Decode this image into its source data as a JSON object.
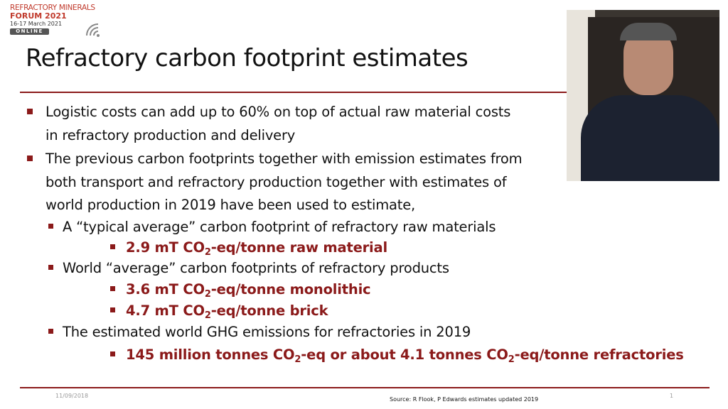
{
  "logo": {
    "line1": "REFRACTORY MINERALS",
    "line2": "FORUM 2021",
    "date": "16-17 March 2021",
    "badge": "ONLINE"
  },
  "slide": {
    "title": "Refractory carbon footprint estimates",
    "bullets": [
      {
        "level": 1,
        "lines": [
          "Logistic costs can add up to 60% on top of actual raw material costs",
          "in refractory production and delivery"
        ]
      },
      {
        "level": 1,
        "lines": [
          "The previous carbon footprints together with emission estimates from",
          "both transport and refractory production together with estimates of",
          "world production in 2019 have been used to estimate,"
        ]
      },
      {
        "level": 2,
        "lines": [
          "A “typical average” carbon footprint of refractory raw materials"
        ]
      },
      {
        "level": 3,
        "parts": [
          {
            "text": "2.9 mT CO"
          },
          {
            "sub": "2"
          },
          {
            "text": "-eq/tonne raw material"
          }
        ]
      },
      {
        "level": 2,
        "lines": [
          "World “average” carbon footprints of refractory products"
        ]
      },
      {
        "level": 3,
        "parts": [
          {
            "text": "3.6 mT CO"
          },
          {
            "sub": "2"
          },
          {
            "text": "-eq/tonne monolithic"
          }
        ]
      },
      {
        "level": 3,
        "parts": [
          {
            "text": "4.7 mT CO"
          },
          {
            "sub": "2"
          },
          {
            "text": "-eq/tonne brick"
          }
        ]
      },
      {
        "level": 2,
        "lines": [
          "The estimated world GHG emissions for refractories in 2019"
        ]
      },
      {
        "level": 3,
        "parts": [
          {
            "text": "145 million tonnes CO"
          },
          {
            "sub": "2"
          },
          {
            "text": "-eq or about 4.1 tonnes CO"
          },
          {
            "sub": "2"
          },
          {
            "text": "-eq/tonne refractories"
          }
        ]
      }
    ],
    "footer": {
      "date": "11/09/2018",
      "source": "Source: R Flook, P Edwards estimates updated 2019",
      "page": "1"
    }
  }
}
